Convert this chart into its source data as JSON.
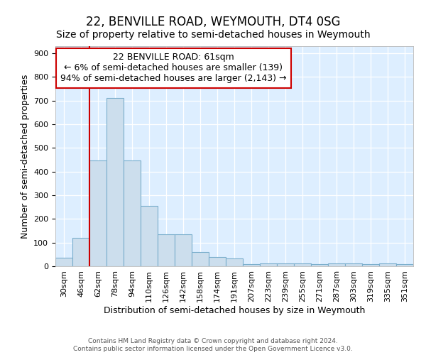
{
  "title1": "22, BENVILLE ROAD, WEYMOUTH, DT4 0SG",
  "title2": "Size of property relative to semi-detached houses in Weymouth",
  "xlabel": "Distribution of semi-detached houses by size in Weymouth",
  "ylabel": "Number of semi-detached properties",
  "bin_labels": [
    "30sqm",
    "46sqm",
    "62sqm",
    "78sqm",
    "94sqm",
    "110sqm",
    "126sqm",
    "142sqm",
    "158sqm",
    "174sqm",
    "191sqm",
    "207sqm",
    "223sqm",
    "239sqm",
    "255sqm",
    "271sqm",
    "287sqm",
    "303sqm",
    "319sqm",
    "335sqm",
    "351sqm"
  ],
  "bar_heights": [
    35,
    120,
    448,
    712,
    448,
    254,
    135,
    135,
    60,
    38,
    32,
    10,
    13,
    13,
    13,
    8,
    13,
    13,
    8,
    13,
    8
  ],
  "bar_color": "#ccdeed",
  "bar_edge_color": "#7aaecc",
  "red_line_x": 2.0,
  "annotation_title": "22 BENVILLE ROAD: 61sqm",
  "annotation_line1": "← 6% of semi-detached houses are smaller (139)",
  "annotation_line2": "94% of semi-detached houses are larger (2,143) →",
  "annotation_box_color": "#ffffff",
  "annotation_border_color": "#cc0000",
  "red_line_color": "#cc0000",
  "footer1": "Contains HM Land Registry data © Crown copyright and database right 2024.",
  "footer2": "Contains public sector information licensed under the Open Government Licence v3.0.",
  "ylim": [
    0,
    930
  ],
  "yticks": [
    0,
    100,
    200,
    300,
    400,
    500,
    600,
    700,
    800,
    900
  ],
  "background_color": "#ddeeff",
  "grid_color": "#ffffff",
  "title1_fontsize": 12,
  "title2_fontsize": 10,
  "annotation_fontsize": 9,
  "axis_label_fontsize": 9,
  "tick_fontsize": 8
}
